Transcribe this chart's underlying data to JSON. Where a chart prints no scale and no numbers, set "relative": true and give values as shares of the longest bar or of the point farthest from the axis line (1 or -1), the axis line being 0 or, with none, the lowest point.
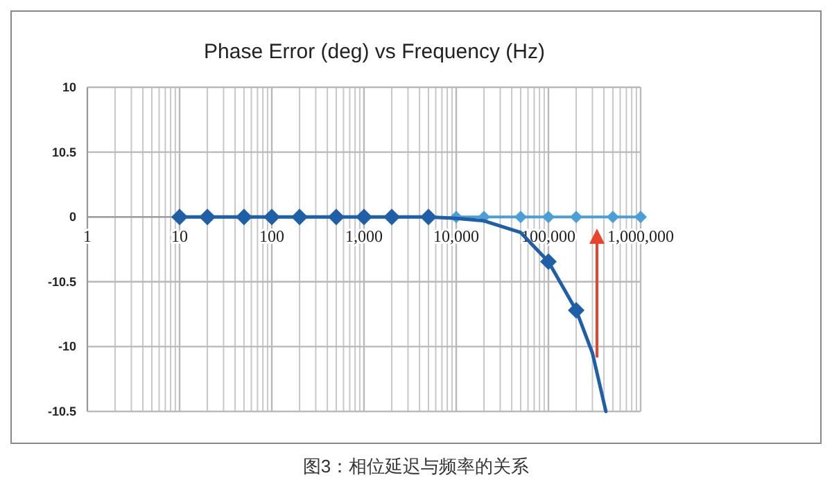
{
  "chart_data": {
    "type": "line",
    "title": "Phase  Error (deg) vs Frequency (Hz)",
    "log": "x",
    "grid": true,
    "marker": "diamond",
    "line_style": "solid",
    "relative": true,
    "xlim": [
      1,
      1000000
    ],
    "xticks": [
      {
        "value": 1,
        "label": "1"
      },
      {
        "value": 10,
        "label": "10"
      },
      {
        "value": 100,
        "label": "100"
      },
      {
        "value": 1000,
        "label": "1,000"
      },
      {
        "value": 10000,
        "label": "10,000"
      },
      {
        "value": 100000,
        "label": "100,000"
      },
      {
        "value": 1000000,
        "label": "1,000,000"
      }
    ],
    "series": [
      {
        "color": "#4a9fd8",
        "x": [
          10000,
          20000,
          50000,
          100000,
          200000,
          500000,
          1000000
        ],
        "values": [
          0,
          0,
          0,
          0,
          0,
          0,
          0
        ]
      },
      {
        "color": "#1f5fa8",
        "x": [
          10,
          20,
          50,
          100,
          200,
          500,
          1000,
          2000,
          5000
        ],
        "values": [
          0,
          0,
          0,
          0,
          0,
          0,
          0,
          0,
          0
        ]
      },
      {
        "color": "#1f5fa8",
        "marker": "none",
        "x": [
          5000,
          10000,
          20000,
          50000,
          100000,
          200000,
          300000,
          420000
        ],
        "values": [
          0,
          -0.007,
          -0.02,
          -0.08,
          -0.23,
          -0.48,
          -0.7,
          -1
        ]
      },
      {
        "color": "#1f5fa8",
        "type": "scatter",
        "x": [
          100000,
          200000
        ],
        "values": [
          -0.23,
          -0.48
        ]
      }
    ],
    "annotations": [
      "10",
      "10.5",
      "0",
      "-10.5",
      "-10",
      "-10.5",
      "图3：相位延迟与频率的关系"
    ]
  }
}
